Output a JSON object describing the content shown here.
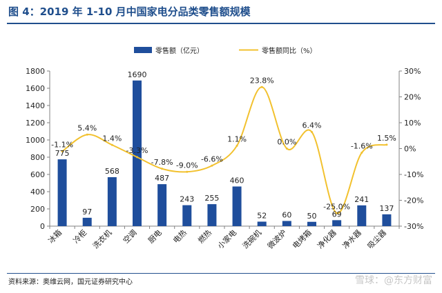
{
  "figure": {
    "title": "图 4：2019 年 1-10 月中国家电分品类零售额规模",
    "source": "资料来源：奥维云网，国元证券研究中心",
    "watermark": "雪球：@东方财富"
  },
  "colors": {
    "bar": "#1f4e9c",
    "line": "#f2c12e",
    "title": "#1f4e8c",
    "axis": "#808080",
    "text": "#222222"
  },
  "chart_data": {
    "type": "bar",
    "categories": [
      "冰箱",
      "冷柜",
      "洗衣机",
      "空调",
      "厨电",
      "电热",
      "燃热",
      "小家电",
      "洗碗机",
      "微波炉",
      "电烤箱",
      "净化器",
      "净水器",
      "吸尘器"
    ],
    "series": [
      {
        "name": "零售额（亿元）",
        "type": "bar",
        "axis": "left",
        "values": [
          775,
          97,
          568,
          1690,
          487,
          243,
          255,
          460,
          52,
          60,
          50,
          69,
          241,
          137
        ],
        "labels": [
          "775",
          "97",
          "568",
          "1690",
          "487",
          "243",
          "255",
          "460",
          "52",
          "60",
          "50",
          "69",
          "241",
          "137"
        ]
      },
      {
        "name": "零售额同比（%）",
        "type": "line",
        "axis": "right",
        "smooth": true,
        "values": [
          -1.1,
          5.4,
          1.4,
          -3.3,
          -7.8,
          -9.0,
          -6.6,
          1.1,
          23.8,
          0.0,
          6.4,
          -25.0,
          -1.6,
          1.5
        ],
        "labels": [
          "-1.1%",
          "5.4%",
          "1.4%",
          "-3.3%",
          "-7.8%",
          "-9.0%",
          "-6.6%",
          "1.1%",
          "23.8%",
          "0.0%",
          "6.4%",
          "-25.0%",
          "-1.6%",
          "1.5%"
        ]
      }
    ],
    "y_left": {
      "min": 0,
      "max": 1800,
      "ticks": [
        0,
        200,
        400,
        600,
        800,
        1000,
        1200,
        1400,
        1600,
        1800
      ],
      "tick_labels": [
        "0",
        "200",
        "400",
        "600",
        "800",
        "1000",
        "1200",
        "1400",
        "1600",
        "1800"
      ]
    },
    "y_right": {
      "min": -30,
      "max": 30,
      "ticks": [
        -30,
        -20,
        -10,
        0,
        10,
        20,
        30
      ],
      "tick_labels": [
        "-30%",
        "-20%",
        "-10%",
        "0%",
        "10%",
        "20%",
        "30%"
      ]
    },
    "legend_position": "top",
    "grid": false
  }
}
